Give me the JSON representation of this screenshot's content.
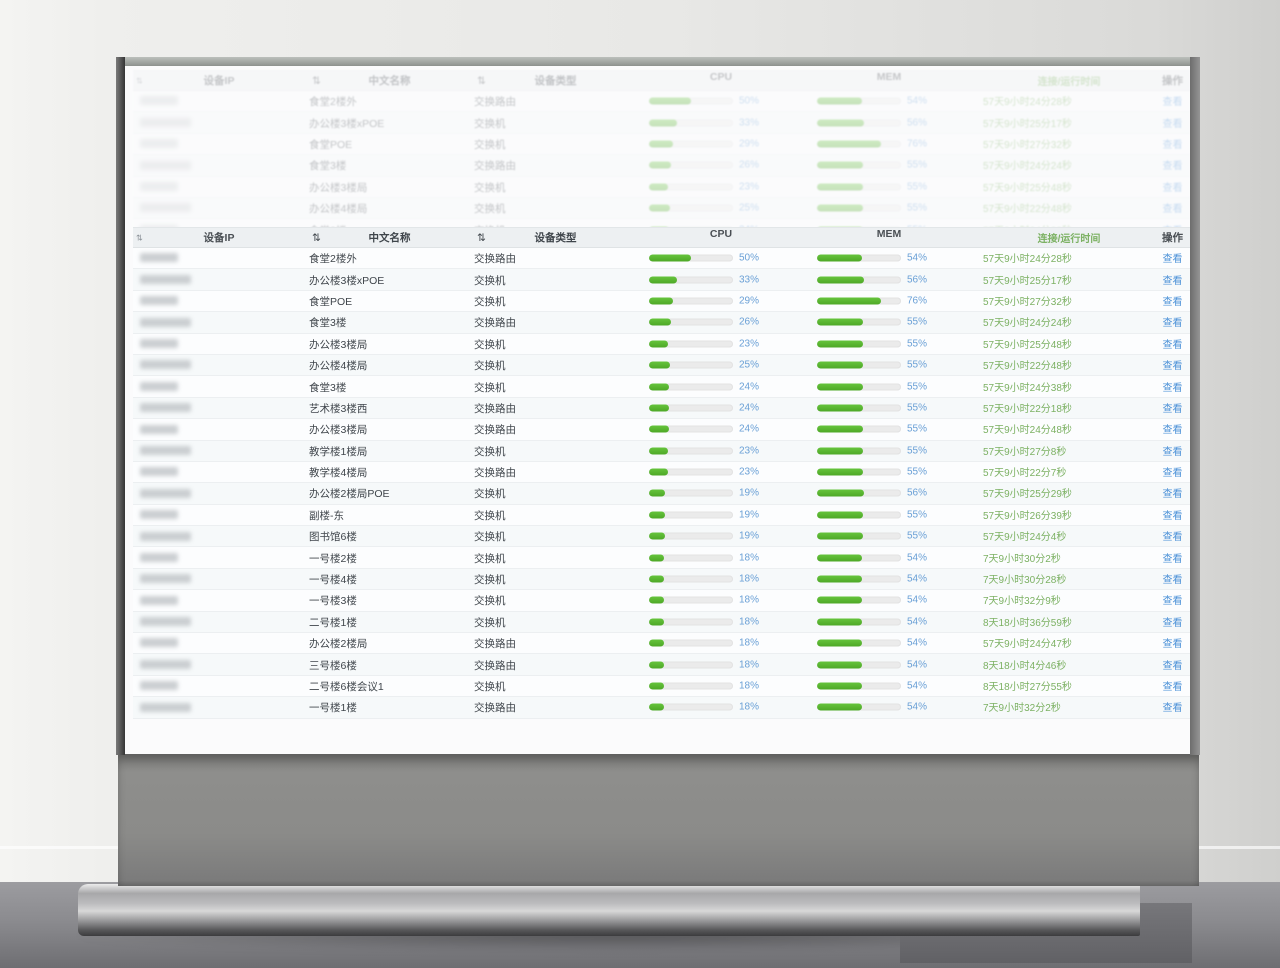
{
  "table": {
    "columns": [
      {
        "label": "设备IP",
        "sortable": true
      },
      {
        "label": "中文名称",
        "sortable": true
      },
      {
        "label": "设备类型",
        "sortable": true
      },
      {
        "label": "CPU",
        "sortable": false
      },
      {
        "label": "MEM",
        "sortable": false
      },
      {
        "label": "连接/运行时间",
        "sortable": false
      },
      {
        "label": "操作",
        "sortable": false
      }
    ],
    "op_label": "查看",
    "ip_display": "blurred",
    "rows": [
      {
        "name": "食堂2楼外",
        "type": "交换路由",
        "cpu": 50,
        "mem": 54,
        "time": "57天9小时24分28秒"
      },
      {
        "name": "办公楼3楼xPOE",
        "type": "交换机",
        "cpu": 33,
        "mem": 56,
        "time": "57天9小时25分17秒"
      },
      {
        "name": "食堂POE",
        "type": "交换机",
        "cpu": 29,
        "mem": 76,
        "time": "57天9小时27分32秒"
      },
      {
        "name": "食堂3楼",
        "type": "交换路由",
        "cpu": 26,
        "mem": 55,
        "time": "57天9小时24分24秒"
      },
      {
        "name": "办公楼3楼局",
        "type": "交换机",
        "cpu": 23,
        "mem": 55,
        "time": "57天9小时25分48秒"
      },
      {
        "name": "办公楼4楼局",
        "type": "交换机",
        "cpu": 25,
        "mem": 55,
        "time": "57天9小时22分48秒"
      },
      {
        "name": "食堂3楼",
        "type": "交换机",
        "cpu": 24,
        "mem": 55,
        "time": "57天9小时24分38秒"
      },
      {
        "name": "艺术楼3楼西",
        "type": "交换路由",
        "cpu": 24,
        "mem": 55,
        "time": "57天9小时22分18秒"
      },
      {
        "name": "办公楼3楼局",
        "type": "交换路由",
        "cpu": 24,
        "mem": 55,
        "time": "57天9小时24分48秒"
      },
      {
        "name": "教学楼1楼局",
        "type": "交换机",
        "cpu": 23,
        "mem": 55,
        "time": "57天9小时27分8秒"
      },
      {
        "name": "教学楼4楼局",
        "type": "交换路由",
        "cpu": 23,
        "mem": 55,
        "time": "57天9小时22分7秒"
      },
      {
        "name": "办公楼2楼局POE",
        "type": "交换机",
        "cpu": 19,
        "mem": 56,
        "time": "57天9小时25分29秒"
      },
      {
        "name": "副楼-东",
        "type": "交换机",
        "cpu": 19,
        "mem": 55,
        "time": "57天9小时26分39秒"
      },
      {
        "name": "图书馆6楼",
        "type": "交换机",
        "cpu": 19,
        "mem": 55,
        "time": "57天9小时24分4秒"
      },
      {
        "name": "一号楼2楼",
        "type": "交换机",
        "cpu": 18,
        "mem": 54,
        "time": "7天9小时30分2秒"
      },
      {
        "name": "一号楼4楼",
        "type": "交换机",
        "cpu": 18,
        "mem": 54,
        "time": "7天9小时30分28秒"
      },
      {
        "name": "一号楼3楼",
        "type": "交换机",
        "cpu": 18,
        "mem": 54,
        "time": "7天9小时32分9秒"
      },
      {
        "name": "二号楼1楼",
        "type": "交换机",
        "cpu": 18,
        "mem": 54,
        "time": "8天18小时36分59秒"
      },
      {
        "name": "办公楼2楼局",
        "type": "交换路由",
        "cpu": 18,
        "mem": 54,
        "time": "57天9小时24分47秒"
      },
      {
        "name": "三号楼6楼",
        "type": "交换路由",
        "cpu": 18,
        "mem": 54,
        "time": "8天18小时4分46秒"
      },
      {
        "name": "二号楼6楼会议1",
        "type": "交换机",
        "cpu": 18,
        "mem": 54,
        "time": "8天18小时27分55秒"
      },
      {
        "name": "一号楼1楼",
        "type": "交换路由",
        "cpu": 18,
        "mem": 54,
        "time": "7天9小时32分2秒"
      }
    ]
  },
  "icons": {
    "sort": "⇅"
  },
  "colors": {
    "bar_green": "#56b32e",
    "percent_text": "#6aa0d6",
    "time_text": "#7cb163",
    "op_text": "#4d92d8",
    "header_bg": "#edf0f2"
  }
}
